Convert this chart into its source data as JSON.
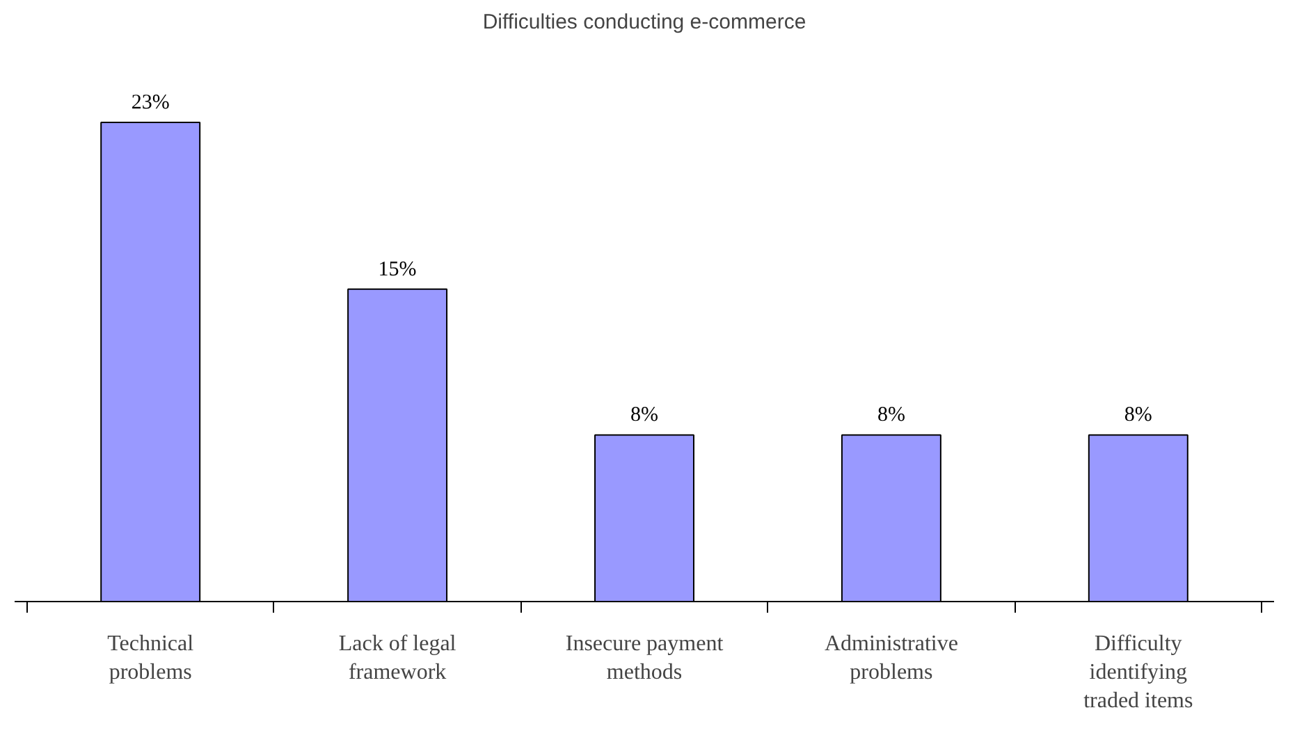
{
  "chart_data": {
    "type": "bar",
    "title": "Difficulties conducting e-commerce",
    "categories": [
      "Technical problems",
      "Lack of legal framework",
      "Insecure payment methods",
      "Administrative problems",
      "Difficulty identifying traded items"
    ],
    "values": [
      23,
      15,
      8,
      8,
      8
    ],
    "value_labels": [
      "23%",
      "15%",
      "8%",
      "8%",
      "8%"
    ],
    "color": "#9999ff"
  }
}
